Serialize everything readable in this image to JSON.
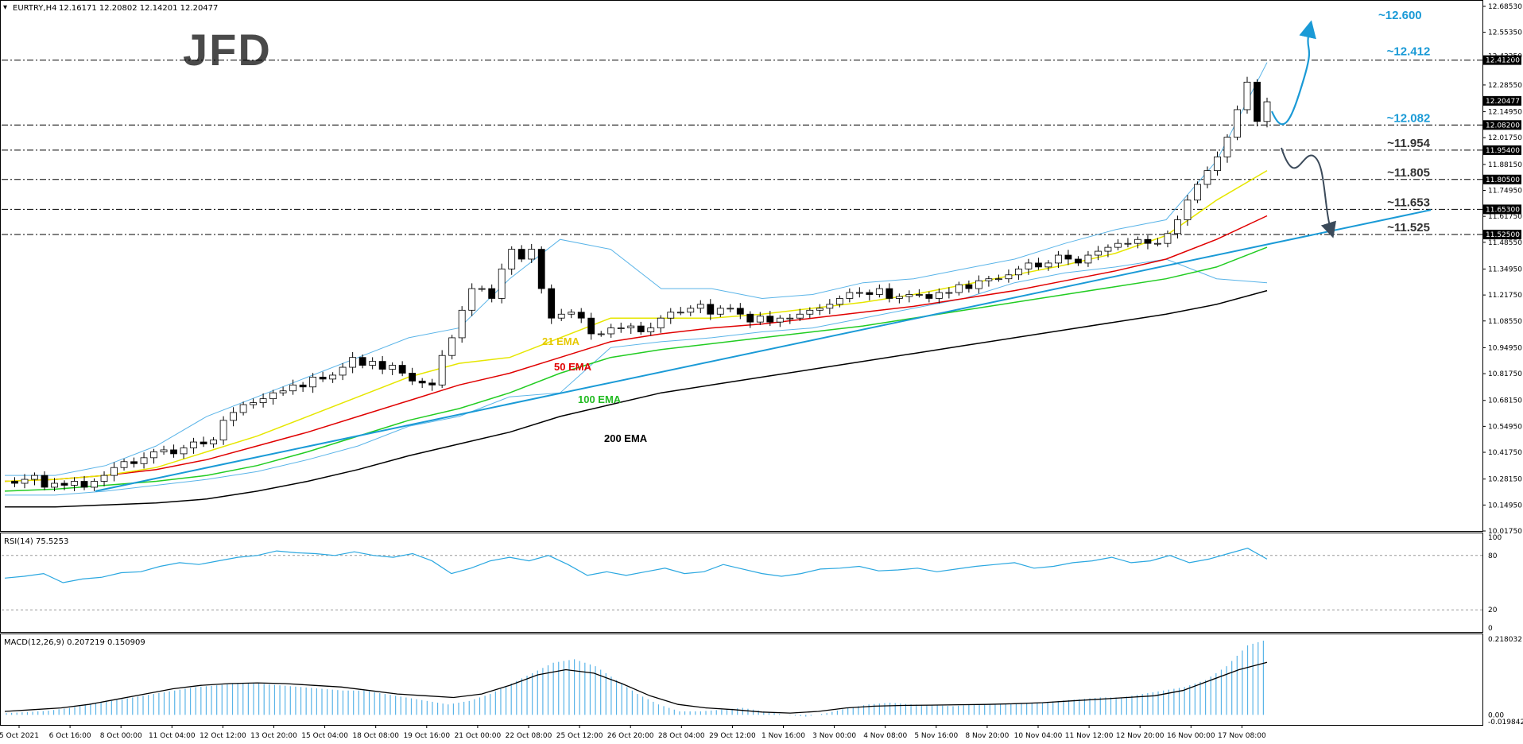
{
  "header": {
    "symbol": "EURTRY,H4",
    "ohlc": "12.16171 12.20802 12.14201 12.20477",
    "rsi_label": "RSI(14) 75.5253",
    "macd_label": "MACD(12,26,9) 0.207219 0.150909"
  },
  "logo": {
    "text": "JFD"
  },
  "colors": {
    "candle_up": "#ffffff",
    "candle_down": "#000000",
    "ema21": "#e6e600",
    "ema50": "#e00000",
    "ema100": "#22cc22",
    "ema200": "#000000",
    "bollinger": "#5ab4e8",
    "trendline": "#1a9ad6",
    "rsi_line": "#2aa7e0",
    "macd_hist": "#5ab4e8",
    "macd_signal": "#000000",
    "level_label": "#1a9ad6",
    "level_dark": "#333333",
    "price_box_bg": "#000000",
    "up_arrow": "#1a9ad6",
    "down_arrow": "#3b4a5a"
  },
  "price_axis": {
    "ticks": [
      "12.68530",
      "12.55350",
      "12.43250",
      "12.28550",
      "12.14950",
      "12.01750",
      "11.88150",
      "11.74950",
      "11.61750",
      "11.48550",
      "11.34950",
      "11.21750",
      "11.08550",
      "10.94950",
      "10.81750",
      "10.68150",
      "10.54950",
      "10.41750",
      "10.28150",
      "10.14950",
      "10.01750"
    ],
    "current_price": "12.20477"
  },
  "time_axis": {
    "ticks": [
      "5 Oct 2021",
      "6 Oct 16:00",
      "8 Oct 00:00",
      "11 Oct 04:00",
      "12 Oct 12:00",
      "13 Oct 20:00",
      "15 Oct 04:00",
      "18 Oct 08:00",
      "19 Oct 16:00",
      "21 Oct 00:00",
      "22 Oct 08:00",
      "25 Oct 12:00",
      "26 Oct 20:00",
      "28 Oct 04:00",
      "29 Oct 12:00",
      "1 Nov 16:00",
      "3 Nov 00:00",
      "4 Nov 08:00",
      "5 Nov 16:00",
      "8 Nov 20:00",
      "10 Nov 04:00",
      "11 Nov 12:00",
      "12 Nov 20:00",
      "16 Nov 00:00",
      "17 Nov 08:00"
    ]
  },
  "levels": [
    {
      "box": "12.41200",
      "label": "~12.412",
      "tone": "blue"
    },
    {
      "box": "12.08200",
      "label": "~12.082",
      "tone": "blue"
    },
    {
      "box": "11.95400",
      "label": "~11.954",
      "tone": "dark"
    },
    {
      "box": "11.80500",
      "label": "~11.805",
      "tone": "dark"
    },
    {
      "box": "11.65300",
      "label": "~11.653",
      "tone": "dark"
    },
    {
      "box": "11.52500",
      "label": "~11.525",
      "tone": "dark"
    }
  ],
  "target_label": "~12.600",
  "ema_labels": {
    "ema21": "21 EMA",
    "ema50": "50 EMA",
    "ema100": "100 EMA",
    "ema200": "200 EMA"
  },
  "rsi_axis": {
    "ticks": [
      "100",
      "80",
      "20",
      "0"
    ]
  },
  "macd_axis": {
    "ticks": [
      "0.218032",
      "0.00",
      "-0.019842"
    ]
  },
  "chart_data": {
    "type": "candlestick",
    "symbol": "EURTRY",
    "timeframe": "H4",
    "ylim": [
      10.0175,
      12.6853
    ],
    "last": {
      "open": 12.16171,
      "high": 12.20802,
      "low": 12.14201,
      "close": 12.20477
    },
    "horizontal_levels": [
      12.412,
      12.082,
      11.954,
      11.805,
      11.653,
      11.525
    ],
    "target": 12.6,
    "close_path": [
      10.27,
      10.26,
      10.28,
      10.3,
      10.24,
      10.26,
      10.25,
      10.27,
      10.24,
      10.27,
      10.3,
      10.34,
      10.37,
      10.36,
      10.39,
      10.42,
      10.43,
      10.41,
      10.44,
      10.47,
      10.46,
      10.48,
      10.58,
      10.62,
      10.66,
      10.67,
      10.69,
      10.72,
      10.73,
      10.76,
      10.75,
      10.8,
      10.79,
      10.81,
      10.85,
      10.9,
      10.86,
      10.88,
      10.84,
      10.86,
      10.82,
      10.78,
      10.77,
      10.76,
      10.91,
      11.0,
      11.14,
      11.25,
      11.25,
      11.2,
      11.35,
      11.45,
      11.4,
      11.45,
      11.25,
      11.1,
      11.12,
      11.13,
      11.1,
      11.02,
      11.02,
      11.05,
      11.05,
      11.06,
      11.03,
      11.05,
      11.1,
      11.13,
      11.13,
      11.15,
      11.17,
      11.12,
      11.15,
      11.15,
      11.12,
      11.08,
      11.11,
      11.08,
      11.1,
      11.1,
      11.12,
      11.14,
      11.15,
      11.17,
      11.2,
      11.23,
      11.23,
      11.22,
      11.25,
      11.2,
      11.21,
      11.22,
      11.22,
      11.2,
      11.23,
      11.23,
      11.27,
      11.25,
      11.29,
      11.3,
      11.3,
      11.32,
      11.35,
      11.38,
      11.36,
      11.38,
      11.42,
      11.4,
      11.38,
      11.42,
      11.44,
      11.46,
      11.48,
      11.48,
      11.5,
      11.48,
      11.48,
      11.53,
      11.6,
      11.7,
      11.78,
      11.85,
      11.92,
      12.02,
      12.16,
      12.3,
      12.1,
      12.2
    ],
    "ema21": [
      10.27,
      10.28,
      10.3,
      10.34,
      10.42,
      10.5,
      10.6,
      10.7,
      10.8,
      10.87,
      10.9,
      11.0,
      11.1,
      11.1,
      11.1,
      11.12,
      11.15,
      11.18,
      11.22,
      11.27,
      11.32,
      11.37,
      11.43,
      11.52,
      11.7,
      11.85
    ],
    "ema50": [
      10.27,
      10.28,
      10.3,
      10.33,
      10.38,
      10.45,
      10.52,
      10.6,
      10.68,
      10.76,
      10.82,
      10.9,
      10.98,
      11.02,
      11.05,
      11.07,
      11.1,
      11.13,
      11.16,
      11.2,
      11.24,
      11.29,
      11.34,
      11.4,
      11.5,
      11.62
    ],
    "ema100": [
      10.22,
      10.23,
      10.25,
      10.27,
      10.3,
      10.35,
      10.42,
      10.5,
      10.58,
      10.64,
      10.72,
      10.82,
      10.9,
      10.94,
      10.97,
      11.0,
      11.03,
      11.06,
      11.1,
      11.14,
      11.18,
      11.22,
      11.26,
      11.3,
      11.36,
      11.46
    ],
    "ema200": [
      10.14,
      10.14,
      10.15,
      10.16,
      10.18,
      10.22,
      10.27,
      10.33,
      10.4,
      10.46,
      10.52,
      10.6,
      10.66,
      10.72,
      10.76,
      10.8,
      10.84,
      10.88,
      10.92,
      10.96,
      11.0,
      11.04,
      11.08,
      11.12,
      11.17,
      11.24
    ],
    "bb_upper": [
      10.3,
      10.3,
      10.35,
      10.45,
      10.6,
      10.7,
      10.8,
      10.9,
      11.0,
      11.05,
      11.3,
      11.5,
      11.45,
      11.25,
      11.25,
      11.2,
      11.22,
      11.28,
      11.3,
      11.35,
      11.4,
      11.48,
      11.55,
      11.6,
      11.9,
      12.4
    ],
    "bb_lower": [
      10.2,
      10.2,
      10.22,
      10.25,
      10.28,
      10.32,
      10.38,
      10.45,
      10.55,
      10.6,
      10.7,
      10.72,
      10.95,
      10.98,
      11.0,
      11.03,
      11.05,
      11.1,
      11.15,
      11.2,
      11.28,
      11.33,
      11.36,
      11.4,
      11.3,
      11.28
    ],
    "trendline": {
      "start": [
        0.0,
        10.22
      ],
      "end": [
        1.0,
        11.65
      ]
    },
    "rsi": {
      "ylim": [
        0,
        100
      ],
      "guides": [
        80,
        20
      ],
      "last": 75.5253,
      "values": [
        55,
        57,
        60,
        50,
        54,
        56,
        61,
        62,
        68,
        72,
        70,
        74,
        78,
        80,
        85,
        83,
        82,
        80,
        84,
        80,
        78,
        82,
        74,
        60,
        66,
        74,
        78,
        74,
        80,
        70,
        58,
        62,
        58,
        62,
        66,
        60,
        62,
        70,
        65,
        60,
        57,
        60,
        65,
        66,
        68,
        63,
        64,
        66,
        62,
        65,
        68,
        70,
        72,
        66,
        68,
        72,
        74,
        78,
        72,
        74,
        80,
        72,
        76,
        82,
        88,
        76
      ]
    },
    "macd": {
      "ylim": [
        -0.019842,
        0.218032
      ],
      "macd_last": 0.207219,
      "signal_last": 0.150909,
      "hist": [
        0.005,
        0.008,
        0.012,
        0.02,
        0.03,
        0.04,
        0.05,
        0.06,
        0.07,
        0.08,
        0.085,
        0.09,
        0.09,
        0.085,
        0.08,
        0.075,
        0.07,
        0.07,
        0.06,
        0.05,
        0.04,
        0.03,
        0.04,
        0.06,
        0.09,
        0.12,
        0.15,
        0.16,
        0.14,
        0.1,
        0.06,
        0.03,
        0.01,
        0.01,
        0.015,
        0.02,
        0.01,
        0.0,
        -0.005,
        0.005,
        0.02,
        0.03,
        0.035,
        0.03,
        0.028,
        0.025,
        0.03,
        0.03,
        0.032,
        0.035,
        0.04,
        0.045,
        0.05,
        0.05,
        0.06,
        0.07,
        0.08,
        0.1,
        0.14,
        0.2,
        0.218
      ],
      "signal": [
        0.01,
        0.015,
        0.02,
        0.03,
        0.045,
        0.06,
        0.075,
        0.085,
        0.09,
        0.092,
        0.09,
        0.085,
        0.08,
        0.07,
        0.06,
        0.055,
        0.05,
        0.06,
        0.085,
        0.115,
        0.13,
        0.12,
        0.09,
        0.055,
        0.03,
        0.02,
        0.015,
        0.008,
        0.005,
        0.01,
        0.02,
        0.025,
        0.027,
        0.028,
        0.029,
        0.03,
        0.032,
        0.035,
        0.04,
        0.045,
        0.05,
        0.055,
        0.07,
        0.1,
        0.13,
        0.151
      ]
    }
  }
}
